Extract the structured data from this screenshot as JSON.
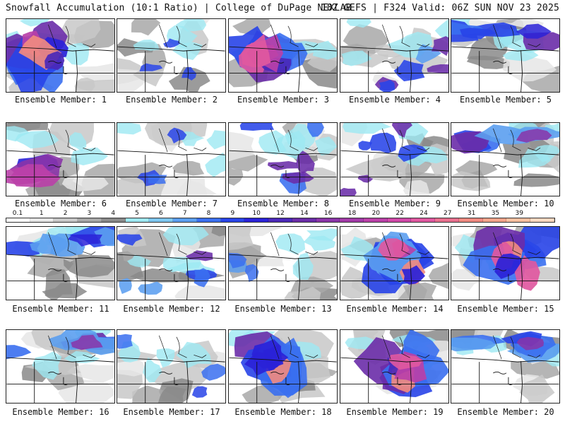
{
  "header": {
    "title": "Snowfall Accumulation (10:1 Ratio) | College of DuPage NEXLAB",
    "run_info": "18Z GEFS | F324 Valid: 06Z SUN NOV 23 2025"
  },
  "panels": [
    {
      "label": "Ensemble Member: 1",
      "pattern": "heavy-west"
    },
    {
      "label": "Ensemble Member: 2",
      "pattern": "light"
    },
    {
      "label": "Ensemble Member: 3",
      "pattern": "heavy-west"
    },
    {
      "label": "Ensemble Member: 4",
      "pattern": "moderate"
    },
    {
      "label": "Ensemble Member: 5",
      "pattern": "north-band"
    },
    {
      "label": "Ensemble Member: 6",
      "pattern": "west-band"
    },
    {
      "label": "Ensemble Member: 7",
      "pattern": "light"
    },
    {
      "label": "Ensemble Member: 8",
      "pattern": "moderate"
    },
    {
      "label": "Ensemble Member: 9",
      "pattern": "moderate"
    },
    {
      "label": "Ensemble Member: 10",
      "pattern": "north-band"
    },
    {
      "label": "Ensemble Member: 11",
      "pattern": "north-band"
    },
    {
      "label": "Ensemble Member: 12",
      "pattern": "moderate"
    },
    {
      "label": "Ensemble Member: 13",
      "pattern": "light"
    },
    {
      "label": "Ensemble Member: 14",
      "pattern": "heavy-east"
    },
    {
      "label": "Ensemble Member: 15",
      "pattern": "heavy-east"
    },
    {
      "label": "Ensemble Member: 16",
      "pattern": "north-band"
    },
    {
      "label": "Ensemble Member: 17",
      "pattern": "light"
    },
    {
      "label": "Ensemble Member: 18",
      "pattern": "heavy-west"
    },
    {
      "label": "Ensemble Member: 19",
      "pattern": "heavy-east"
    },
    {
      "label": "Ensemble Member: 20",
      "pattern": "north-band"
    }
  ],
  "colorbar": {
    "ticks": [
      "0.1",
      "1",
      "2",
      "3",
      "4",
      "5",
      "6",
      "7",
      "8",
      "9",
      "10",
      "12",
      "14",
      "16",
      "18",
      "20",
      "22",
      "24",
      "27",
      "31",
      "35",
      "39"
    ],
    "colors": [
      "#ffffff",
      "#e6e6e6",
      "#c8c8c8",
      "#a8a8a8",
      "#8a8a8a",
      "#9ee8f2",
      "#7ec6f0",
      "#5b9ef0",
      "#3a6ff0",
      "#2844e8",
      "#2a22d8",
      "#4a28b8",
      "#6a2ca8",
      "#8a34a8",
      "#a23aa8",
      "#ba40a8",
      "#d048a8",
      "#e058a0",
      "#e8708e",
      "#f08a80",
      "#f4a48a",
      "#f8c0a0",
      "#fad8c0"
    ]
  }
}
